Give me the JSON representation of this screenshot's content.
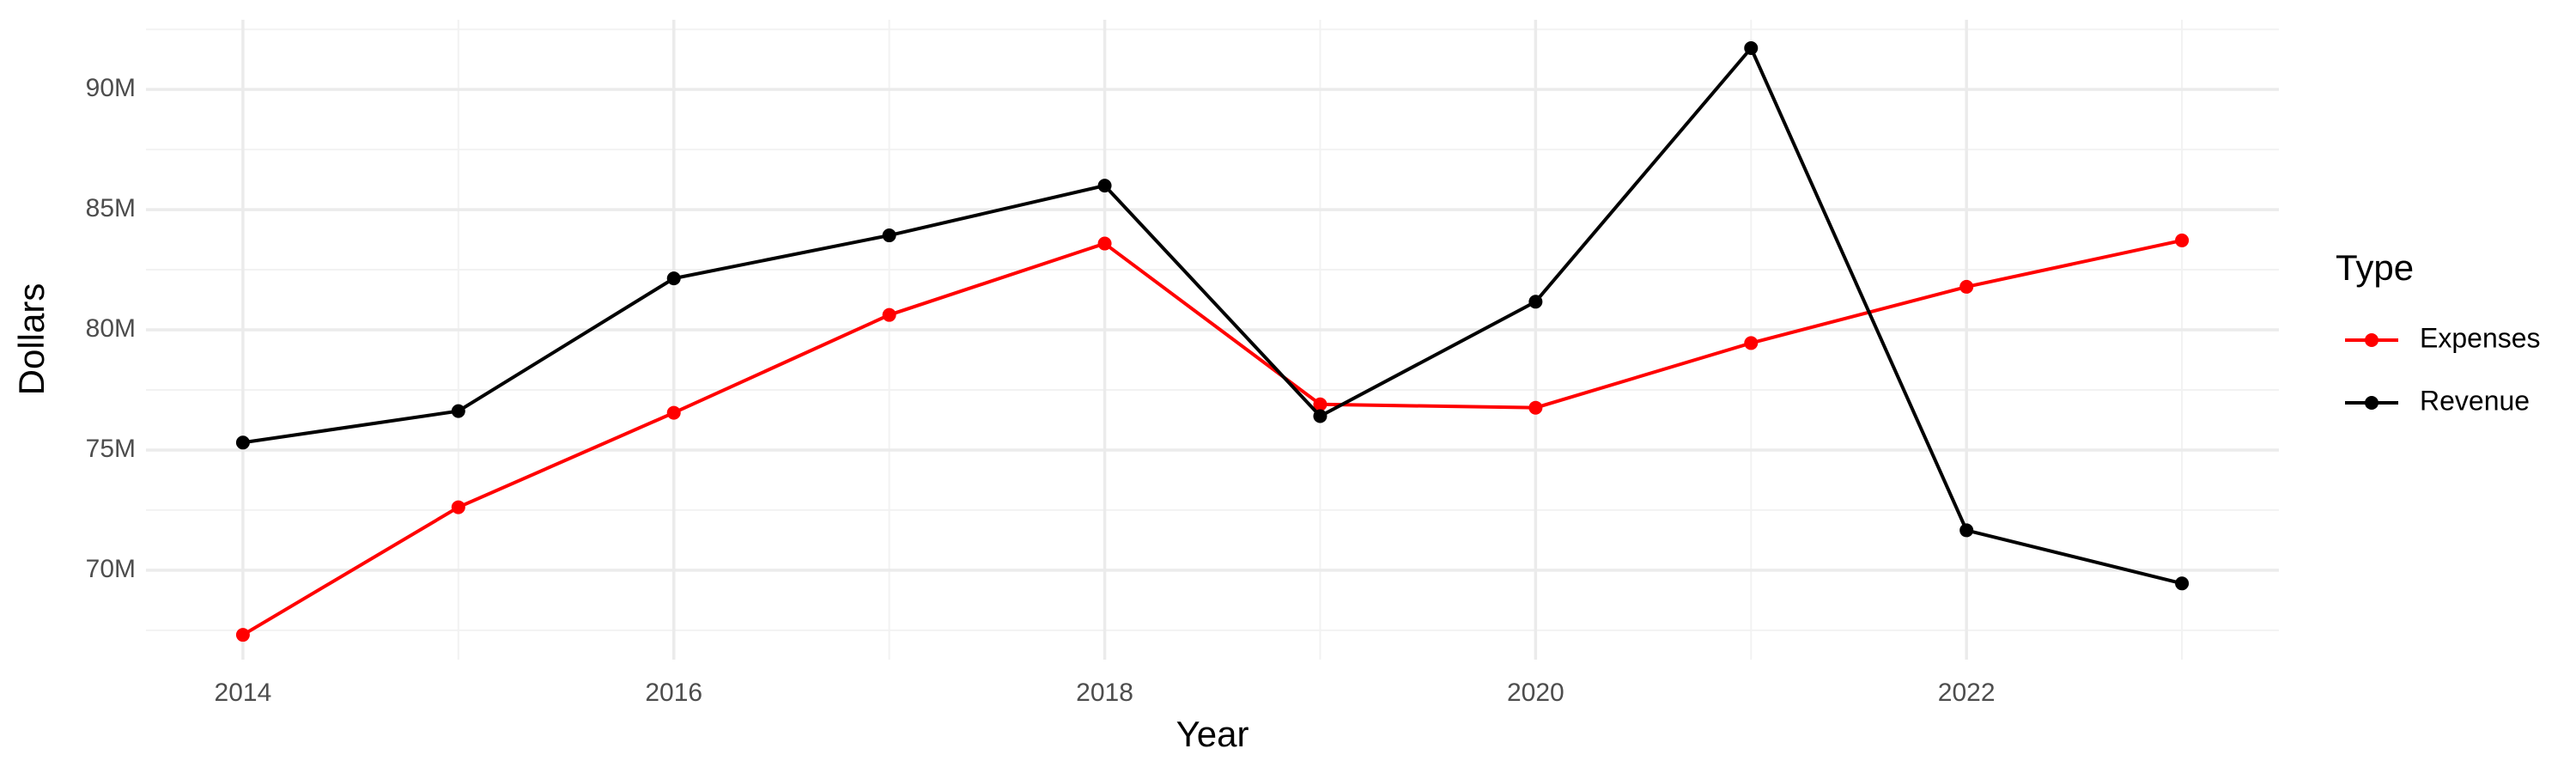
{
  "chart_data": {
    "type": "line",
    "x_label": "Year",
    "y_label": "Dollars",
    "legend_title": "Type",
    "legend_position": "right",
    "grid": true,
    "x": [
      2014,
      2015,
      2016,
      2017,
      2018,
      2019,
      2020,
      2021,
      2022,
      2023
    ],
    "series": [
      {
        "name": "Expenses",
        "color": "#ff0000",
        "values": [
          67310000,
          72620000,
          76550000,
          80620000,
          83590000,
          76900000,
          76760000,
          79450000,
          81790000,
          83720000
        ]
      },
      {
        "name": "Revenue",
        "color": "#000000",
        "values": [
          75310000,
          76620000,
          82140000,
          83930000,
          86000000,
          76410000,
          81170000,
          91720000,
          71660000,
          69450000
        ]
      }
    ],
    "xlim": [
      2013.55,
      2023.45
    ],
    "xticks": [
      2014,
      2016,
      2018,
      2020,
      2022
    ],
    "ylim": [
      66280000,
      92900000
    ],
    "yticks": [
      {
        "value": 70000000,
        "label": "70M"
      },
      {
        "value": 75000000,
        "label": "75M"
      },
      {
        "value": 80000000,
        "label": "80M"
      },
      {
        "value": 85000000,
        "label": "85M"
      },
      {
        "value": 90000000,
        "label": "90M"
      }
    ]
  }
}
